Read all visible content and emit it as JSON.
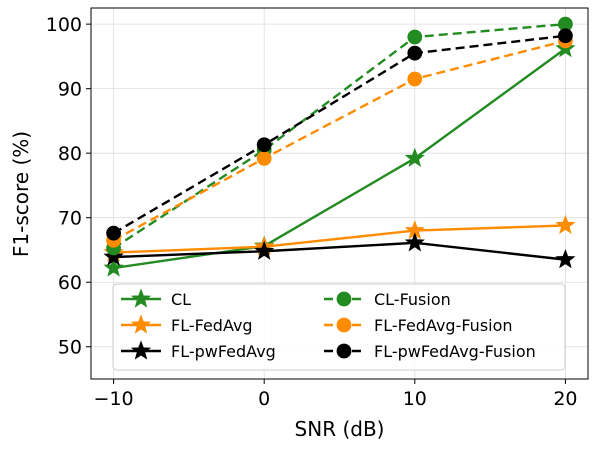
{
  "chart_data": {
    "type": "line",
    "xlabel": "SNR (dB)",
    "ylabel": "F1-score (%)",
    "x": [
      -10,
      0,
      10,
      20
    ],
    "xlim": [
      -11.5,
      21.5
    ],
    "ylim": [
      45,
      102.5
    ],
    "xticks": [
      -10,
      0,
      10,
      20
    ],
    "xtick_labels": [
      "−10",
      "0",
      "10",
      "20"
    ],
    "yticks": [
      50,
      60,
      70,
      80,
      90,
      100
    ],
    "ytick_labels": [
      "50",
      "60",
      "70",
      "80",
      "90",
      "100"
    ],
    "grid": true,
    "legend": {
      "location": "lower-center",
      "columns": 2
    },
    "series": [
      {
        "name": "CL",
        "color": "#228B22",
        "dash": "solid",
        "marker": "star",
        "values": [
          62.2,
          65.6,
          79.2,
          96.2
        ]
      },
      {
        "name": "FL-FedAvg",
        "color": "#FF8C00",
        "dash": "solid",
        "marker": "star",
        "values": [
          64.6,
          65.5,
          68.0,
          68.8
        ]
      },
      {
        "name": "FL-pwFedAvg",
        "color": "#000000",
        "dash": "solid",
        "marker": "star",
        "values": [
          63.9,
          64.8,
          66.1,
          63.5
        ]
      },
      {
        "name": "CL-Fusion",
        "color": "#228B22",
        "dash": "dashed",
        "marker": "circle",
        "values": [
          65.3,
          80.5,
          98.0,
          100.0
        ]
      },
      {
        "name": "FL-FedAvg-Fusion",
        "color": "#FF8C00",
        "dash": "dashed",
        "marker": "circle",
        "values": [
          66.5,
          79.2,
          91.5,
          97.4
        ]
      },
      {
        "name": "FL-pwFedAvg-Fusion",
        "color": "#000000",
        "dash": "dashed",
        "marker": "circle",
        "values": [
          67.6,
          81.3,
          95.5,
          98.2
        ]
      }
    ]
  }
}
